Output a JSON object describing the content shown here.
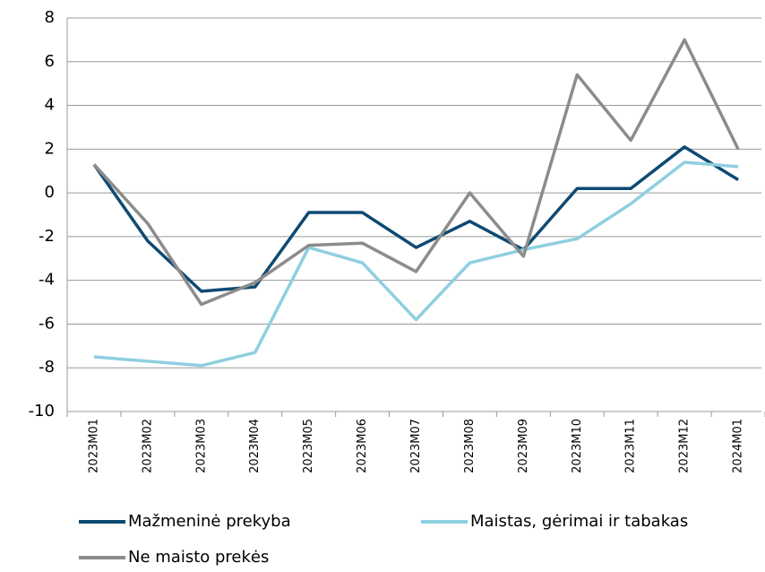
{
  "chart_data": {
    "type": "line",
    "categories": [
      "2023M01",
      "2023M02",
      "2023M03",
      "2023M04",
      "2023M05",
      "2023M06",
      "2023M07",
      "2023M08",
      "2023M09",
      "2023M10",
      "2023M11",
      "2023M12",
      "2024M01"
    ],
    "series": [
      {
        "name": "Mažmeninė prekyba",
        "color": "#0d4a72",
        "values": [
          1.3,
          -2.2,
          -4.5,
          -4.3,
          -0.9,
          -0.9,
          -2.5,
          -1.3,
          -2.6,
          0.2,
          0.2,
          2.1,
          0.6
        ]
      },
      {
        "name": "Maistas, gėrimai ir tabakas",
        "color": "#8ecfe0",
        "values": [
          -7.5,
          -7.7,
          -7.9,
          -7.3,
          -2.5,
          -3.2,
          -5.8,
          -3.2,
          -2.6,
          -2.1,
          -0.5,
          1.4,
          1.2
        ]
      },
      {
        "name": "Ne maisto prekės",
        "color": "#8c8c8c",
        "values": [
          1.3,
          -1.4,
          -5.1,
          -4.1,
          -2.4,
          -2.3,
          -3.6,
          0.0,
          -2.9,
          5.4,
          2.4,
          7.0,
          2.0
        ]
      }
    ],
    "ylim": [
      -10,
      8
    ],
    "yticks": [
      -10,
      -8,
      -6,
      -4,
      -2,
      0,
      2,
      4,
      6,
      8
    ],
    "grid": true
  }
}
